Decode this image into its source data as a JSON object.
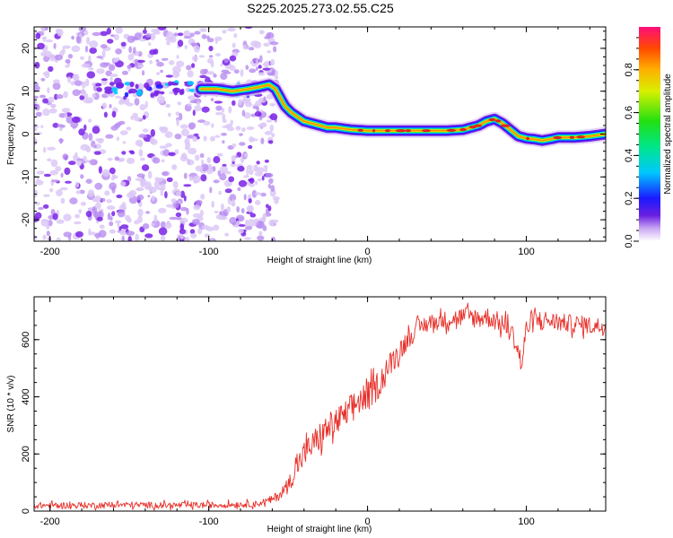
{
  "figure_title": "S225.2025.273.02.55.C25",
  "colors": {
    "snr_line": "#e8302a",
    "ridge_colormap": [
      "#d9c4f5",
      "#7a22e6",
      "#1a1aff",
      "#00d8ff",
      "#19e04a",
      "#ffe600",
      "#ff8a00",
      "#e0241d"
    ]
  },
  "chart_data": [
    {
      "type": "heatmap",
      "title": "",
      "xlabel": "Height of straight line (km)",
      "ylabel": "Frequency (Hz)",
      "xlim": [
        -210,
        150
      ],
      "ylim": [
        -25,
        25
      ],
      "xticks": [
        -200,
        -100,
        0,
        100
      ],
      "yticks": [
        -20,
        -10,
        0,
        10,
        20
      ],
      "colorbar": {
        "label": "Normalized spectral amplitude",
        "range": [
          0,
          1
        ],
        "ticks": [
          0.0,
          0.2,
          0.4,
          0.6,
          0.8
        ],
        "tick_labels": [
          "0.0",
          "0.2",
          "0.4",
          "0.6",
          "0.8"
        ]
      },
      "noise_region_x": [
        -210,
        -65
      ],
      "noise_band_frequency": 10.5,
      "ridge": {
        "x": [
          -105,
          -95,
          -85,
          -75,
          -68,
          -62,
          -58,
          -55,
          -52,
          -48,
          -44,
          -40,
          -35,
          -30,
          -25,
          -20,
          -10,
          0,
          10,
          20,
          30,
          40,
          50,
          60,
          65,
          70,
          75,
          80,
          85,
          90,
          95,
          100,
          105,
          110,
          115,
          120,
          130,
          140,
          150
        ],
        "frequency": [
          10.5,
          10.5,
          10.0,
          10.5,
          11.0,
          11.5,
          10.5,
          8.5,
          6.5,
          5.0,
          4.0,
          3.0,
          2.5,
          2.0,
          1.5,
          1.5,
          1.0,
          0.8,
          0.8,
          0.8,
          0.8,
          0.8,
          0.8,
          1.0,
          1.5,
          2.0,
          3.0,
          3.5,
          2.5,
          1.0,
          -0.5,
          -1.0,
          -1.2,
          -1.5,
          -1.2,
          -0.8,
          -0.8,
          -0.5,
          0.0
        ],
        "amplitude": [
          0.3,
          0.35,
          0.3,
          0.45,
          0.5,
          0.5,
          0.5,
          0.55,
          0.6,
          0.65,
          0.7,
          0.75,
          0.8,
          0.85,
          0.9,
          0.92,
          0.95,
          0.97,
          0.97,
          0.95,
          0.95,
          0.97,
          0.97,
          0.95,
          0.9,
          0.85,
          0.95,
          0.97,
          0.9,
          0.85,
          0.9,
          0.92,
          0.95,
          0.97,
          0.97,
          0.96,
          0.95,
          0.9,
          0.85
        ]
      }
    },
    {
      "type": "line",
      "title": "",
      "xlabel": "Height of straight line (km)",
      "ylabel": "SNR (10 * v/v)",
      "xlim": [
        -210,
        150
      ],
      "ylim": [
        0,
        750
      ],
      "xticks": [
        -200,
        -100,
        0,
        100
      ],
      "yticks": [
        0,
        200,
        400,
        600
      ],
      "series": [
        {
          "name": "SNR",
          "x": [
            -210,
            -180,
            -150,
            -120,
            -90,
            -70,
            -60,
            -55,
            -50,
            -45,
            -40,
            -35,
            -30,
            -25,
            -20,
            -15,
            -10,
            -5,
            0,
            5,
            10,
            15,
            20,
            25,
            30,
            35,
            40,
            45,
            50,
            55,
            60,
            65,
            70,
            75,
            80,
            85,
            90,
            95,
            97,
            100,
            105,
            110,
            115,
            120,
            130,
            140,
            150
          ],
          "values": [
            20,
            20,
            22,
            20,
            22,
            25,
            40,
            60,
            90,
            150,
            200,
            230,
            260,
            290,
            310,
            330,
            360,
            390,
            400,
            430,
            470,
            520,
            560,
            600,
            630,
            650,
            660,
            665,
            670,
            675,
            680,
            680,
            675,
            680,
            670,
            650,
            640,
            560,
            500,
            640,
            665,
            670,
            665,
            660,
            655,
            650,
            645
          ],
          "noise_amplitude": [
            14,
            14,
            14,
            14,
            14,
            14,
            18,
            25,
            35,
            50,
            60,
            60,
            65,
            65,
            65,
            65,
            65,
            65,
            65,
            65,
            60,
            55,
            50,
            45,
            40,
            40,
            38,
            38,
            40,
            40,
            45,
            45,
            45,
            45,
            45,
            45,
            45,
            40,
            40,
            50,
            45,
            45,
            40,
            40,
            40,
            40,
            40
          ]
        }
      ]
    }
  ]
}
